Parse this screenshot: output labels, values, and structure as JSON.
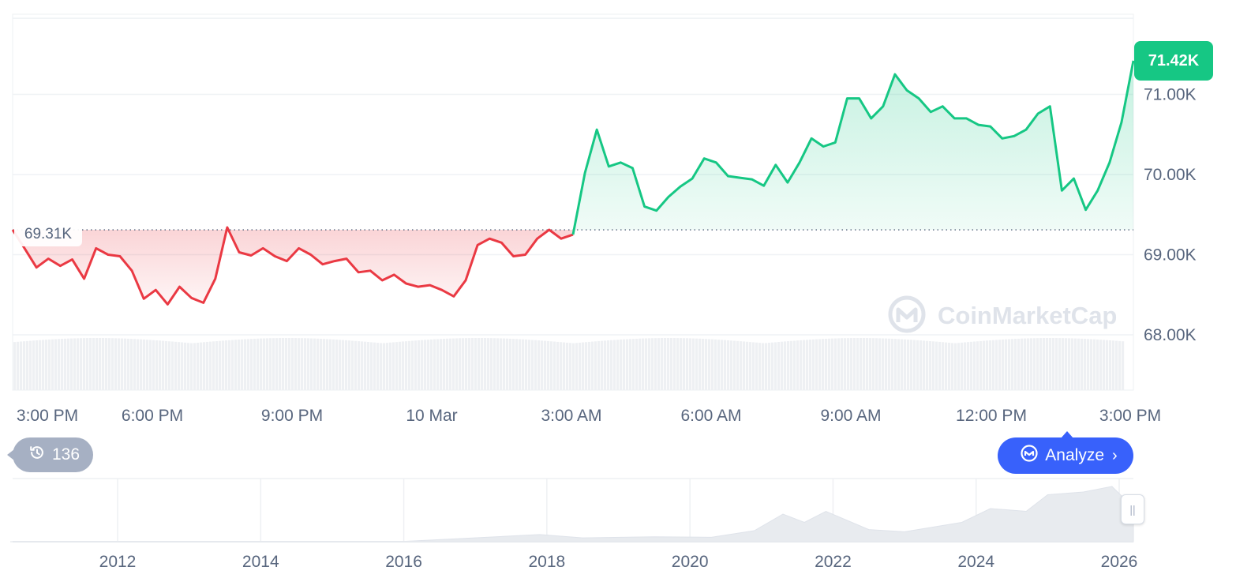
{
  "chart_data": {
    "type": "area",
    "main": {
      "x_ticks": [
        "3:00 PM",
        "6:00 PM",
        "9:00 PM",
        "10 Mar",
        "3:00 AM",
        "6:00 AM",
        "9:00 AM",
        "12:00 PM",
        "3:00 PM"
      ],
      "y_ticks": [
        "68.00K",
        "69.00K",
        "70.00K",
        "71.00K"
      ],
      "y_tick_values": [
        68000,
        69000,
        70000,
        71000
      ],
      "ylim": [
        67000,
        72000
      ],
      "reference_value": 69310,
      "reference_label": "69.31K",
      "current_value": 71420,
      "current_label": "71.42K",
      "series": [
        {
          "t": 0.0,
          "v": 69310
        },
        {
          "t": 0.25,
          "v": 69080
        },
        {
          "t": 0.5,
          "v": 68840
        },
        {
          "t": 0.75,
          "v": 68950
        },
        {
          "t": 1.0,
          "v": 68860
        },
        {
          "t": 1.25,
          "v": 68940
        },
        {
          "t": 1.5,
          "v": 68700
        },
        {
          "t": 1.75,
          "v": 69080
        },
        {
          "t": 2.0,
          "v": 69000
        },
        {
          "t": 2.25,
          "v": 68980
        },
        {
          "t": 2.5,
          "v": 68800
        },
        {
          "t": 2.75,
          "v": 68450
        },
        {
          "t": 3.0,
          "v": 68560
        },
        {
          "t": 3.25,
          "v": 68380
        },
        {
          "t": 3.5,
          "v": 68600
        },
        {
          "t": 3.75,
          "v": 68460
        },
        {
          "t": 4.0,
          "v": 68400
        },
        {
          "t": 4.25,
          "v": 68700
        },
        {
          "t": 4.5,
          "v": 69340
        },
        {
          "t": 4.75,
          "v": 69030
        },
        {
          "t": 5.0,
          "v": 68990
        },
        {
          "t": 5.25,
          "v": 69080
        },
        {
          "t": 5.5,
          "v": 68980
        },
        {
          "t": 5.75,
          "v": 68920
        },
        {
          "t": 6.0,
          "v": 69080
        },
        {
          "t": 6.25,
          "v": 69000
        },
        {
          "t": 6.5,
          "v": 68880
        },
        {
          "t": 6.75,
          "v": 68920
        },
        {
          "t": 7.0,
          "v": 68950
        },
        {
          "t": 7.25,
          "v": 68780
        },
        {
          "t": 7.5,
          "v": 68800
        },
        {
          "t": 7.75,
          "v": 68680
        },
        {
          "t": 8.0,
          "v": 68750
        },
        {
          "t": 8.25,
          "v": 68640
        },
        {
          "t": 8.5,
          "v": 68600
        },
        {
          "t": 8.75,
          "v": 68620
        },
        {
          "t": 9.0,
          "v": 68560
        },
        {
          "t": 9.25,
          "v": 68480
        },
        {
          "t": 9.5,
          "v": 68680
        },
        {
          "t": 9.75,
          "v": 69120
        },
        {
          "t": 10.0,
          "v": 69200
        },
        {
          "t": 10.25,
          "v": 69150
        },
        {
          "t": 10.5,
          "v": 68980
        },
        {
          "t": 10.75,
          "v": 69000
        },
        {
          "t": 11.0,
          "v": 69200
        },
        {
          "t": 11.25,
          "v": 69310
        },
        {
          "t": 11.5,
          "v": 69200
        },
        {
          "t": 11.75,
          "v": 69250
        },
        {
          "t": 12.0,
          "v": 70020
        },
        {
          "t": 12.25,
          "v": 70560
        },
        {
          "t": 12.5,
          "v": 70100
        },
        {
          "t": 12.75,
          "v": 70150
        },
        {
          "t": 13.0,
          "v": 70080
        },
        {
          "t": 13.25,
          "v": 69600
        },
        {
          "t": 13.5,
          "v": 69550
        },
        {
          "t": 13.75,
          "v": 69720
        },
        {
          "t": 14.0,
          "v": 69850
        },
        {
          "t": 14.25,
          "v": 69950
        },
        {
          "t": 14.5,
          "v": 70200
        },
        {
          "t": 14.75,
          "v": 70150
        },
        {
          "t": 15.0,
          "v": 69980
        },
        {
          "t": 15.25,
          "v": 69960
        },
        {
          "t": 15.5,
          "v": 69940
        },
        {
          "t": 15.75,
          "v": 69860
        },
        {
          "t": 16.0,
          "v": 70120
        },
        {
          "t": 16.25,
          "v": 69900
        },
        {
          "t": 16.5,
          "v": 70150
        },
        {
          "t": 16.75,
          "v": 70450
        },
        {
          "t": 17.0,
          "v": 70350
        },
        {
          "t": 17.25,
          "v": 70400
        },
        {
          "t": 17.5,
          "v": 70950
        },
        {
          "t": 17.75,
          "v": 70950
        },
        {
          "t": 18.0,
          "v": 70700
        },
        {
          "t": 18.25,
          "v": 70850
        },
        {
          "t": 18.5,
          "v": 71250
        },
        {
          "t": 18.75,
          "v": 71050
        },
        {
          "t": 19.0,
          "v": 70950
        },
        {
          "t": 19.25,
          "v": 70780
        },
        {
          "t": 19.5,
          "v": 70850
        },
        {
          "t": 19.75,
          "v": 70700
        },
        {
          "t": 20.0,
          "v": 70700
        },
        {
          "t": 20.25,
          "v": 70620
        },
        {
          "t": 20.5,
          "v": 70600
        },
        {
          "t": 20.75,
          "v": 70450
        },
        {
          "t": 21.0,
          "v": 70480
        },
        {
          "t": 21.25,
          "v": 70560
        },
        {
          "t": 21.5,
          "v": 70760
        },
        {
          "t": 21.75,
          "v": 70850
        },
        {
          "t": 22.0,
          "v": 69800
        },
        {
          "t": 22.25,
          "v": 69950
        },
        {
          "t": 22.5,
          "v": 69560
        },
        {
          "t": 22.75,
          "v": 69800
        },
        {
          "t": 23.0,
          "v": 70150
        },
        {
          "t": 23.25,
          "v": 70650
        },
        {
          "t": 23.5,
          "v": 71420
        }
      ]
    },
    "volume": {
      "level": 0.55
    },
    "navigator": {
      "x_ticks": [
        "2012",
        "2014",
        "2016",
        "2018",
        "2020",
        "2022",
        "2024",
        "2026"
      ],
      "series": [
        {
          "year": 2010.5,
          "v": 0
        },
        {
          "year": 2013.0,
          "v": 0.003
        },
        {
          "year": 2016.0,
          "v": 0.005
        },
        {
          "year": 2017.9,
          "v": 0.13
        },
        {
          "year": 2018.5,
          "v": 0.07
        },
        {
          "year": 2019.5,
          "v": 0.09
        },
        {
          "year": 2020.3,
          "v": 0.08
        },
        {
          "year": 2020.9,
          "v": 0.2
        },
        {
          "year": 2021.3,
          "v": 0.5
        },
        {
          "year": 2021.6,
          "v": 0.35
        },
        {
          "year": 2021.9,
          "v": 0.55
        },
        {
          "year": 2022.5,
          "v": 0.22
        },
        {
          "year": 2023.0,
          "v": 0.18
        },
        {
          "year": 2023.8,
          "v": 0.35
        },
        {
          "year": 2024.2,
          "v": 0.6
        },
        {
          "year": 2024.7,
          "v": 0.55
        },
        {
          "year": 2025.0,
          "v": 0.85
        },
        {
          "year": 2025.5,
          "v": 0.9
        },
        {
          "year": 2025.9,
          "v": 1.0
        },
        {
          "year": 2026.2,
          "v": 0.62
        }
      ]
    }
  },
  "labels": {
    "current_badge": "71.42K",
    "reference_badge": "69.31K",
    "history_count": "136",
    "analyze_button": "Analyze",
    "watermark": "CoinMarketCap"
  },
  "colors": {
    "up": "#16c784",
    "down": "#ea3943",
    "accent": "#3861fb",
    "grid": "#eff2f5",
    "axis_text": "#58667e"
  }
}
